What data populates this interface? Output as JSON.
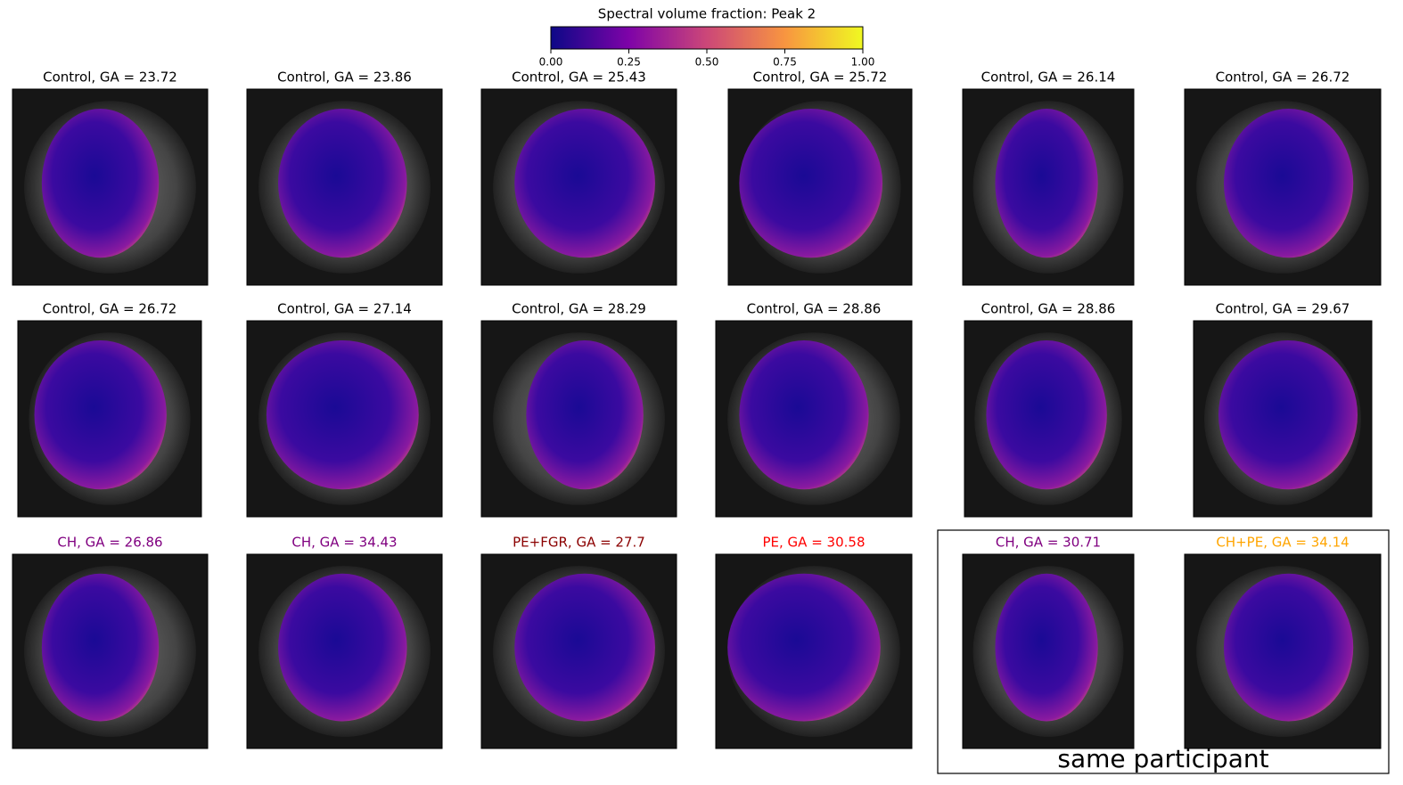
{
  "colorbar": {
    "title": "Spectral volume fraction: Peak 2",
    "lim": [
      0,
      1
    ],
    "ticks": [
      {
        "value": 0,
        "label": "0.00"
      },
      {
        "value": 0.25,
        "label": "0.25"
      },
      {
        "value": 0.5,
        "label": "0.50"
      },
      {
        "value": 0.75,
        "label": "0.75"
      },
      {
        "value": 1,
        "label": "1.00"
      }
    ]
  },
  "panels": [
    {
      "title": "Control, GA = 23.72",
      "color": "#000000"
    },
    {
      "title": "Control, GA = 23.86",
      "color": "#000000"
    },
    {
      "title": "Control, GA = 25.43",
      "color": "#000000"
    },
    {
      "title": "Control, GA = 25.72",
      "color": "#000000"
    },
    {
      "title": "Control, GA = 26.14",
      "color": "#000000"
    },
    {
      "title": "Control, GA = 26.72",
      "color": "#000000"
    },
    {
      "title": "Control, GA = 26.72",
      "color": "#000000"
    },
    {
      "title": "Control, GA = 27.14",
      "color": "#000000"
    },
    {
      "title": "Control, GA = 28.29",
      "color": "#000000"
    },
    {
      "title": "Control, GA = 28.86",
      "color": "#000000"
    },
    {
      "title": "Control, GA = 28.86",
      "color": "#000000"
    },
    {
      "title": "Control, GA = 29.67",
      "color": "#000000"
    },
    {
      "title": "CH, GA = 26.86",
      "color": "#800080"
    },
    {
      "title": "CH, GA = 34.43",
      "color": "#800080"
    },
    {
      "title": "PE+FGR, GA = 27.7",
      "color": "#8b0000"
    },
    {
      "title": "PE, GA = 30.58",
      "color": "#ff0000"
    },
    {
      "title": "CH, GA = 30.71",
      "color": "#800080"
    },
    {
      "title": "CH+PE, GA = 34.14",
      "color": "#ffa500"
    }
  ],
  "group_label": "same participant"
}
